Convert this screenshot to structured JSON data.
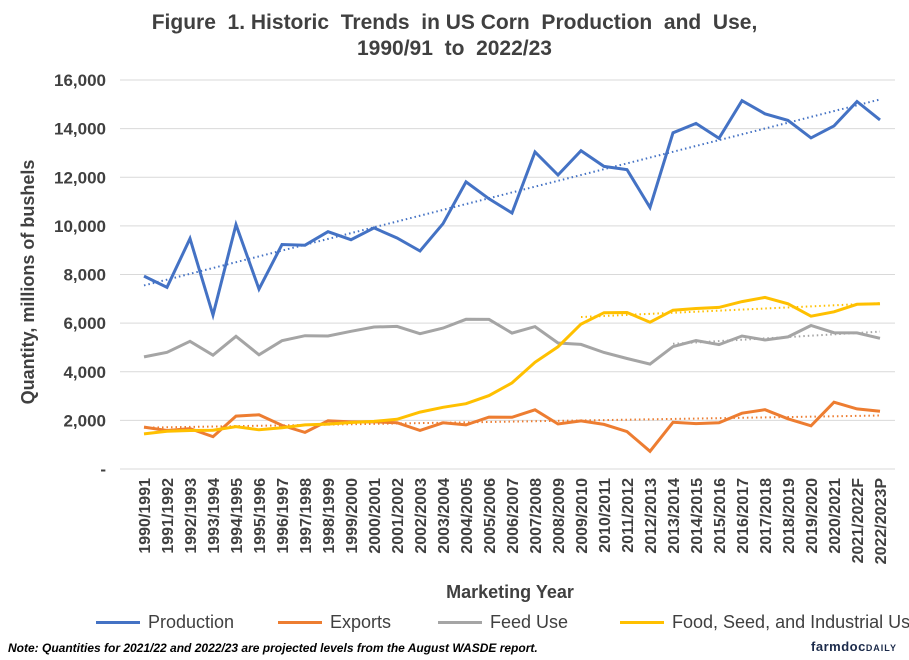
{
  "title_line1": "Figure  1. Historic  Trends  in US Corn  Production  and  Use,",
  "title_line2": "1990/91  to  2022/23",
  "note": "Note:  Quantities  for  2021/22  and  2022/23  are  projected  levels  from  the  August  WASDE  report.",
  "brand": {
    "main": "farmdoc",
    "suffix": "DAILY"
  },
  "chart_data": {
    "type": "line",
    "title": "Figure  1. Historic  Trends  in US Corn  Production  and  Use, 1990/91  to  2022/23",
    "xlabel": "Marketing Year",
    "ylabel": "Quantity, millions of bushels",
    "ylim": [
      0,
      16000
    ],
    "yticks": [
      0,
      2000,
      4000,
      6000,
      8000,
      10000,
      12000,
      14000,
      16000
    ],
    "ytick_labels": [
      "-",
      "2,000",
      "4,000",
      "6,000",
      "8,000",
      "10,000",
      "12,000",
      "14,000",
      "16,000"
    ],
    "grid": true,
    "legend_position": "bottom",
    "categories": [
      "1990/1991",
      "1991/1992",
      "1992/1993",
      "1993/1994",
      "1994/1995",
      "1995/1996",
      "1996/1997",
      "1997/1998",
      "1998/1999",
      "1999/2000",
      "2000/2001",
      "2001/2002",
      "2002/2003",
      "2003/2004",
      "2004/2005",
      "2005/2006",
      "2006/2007",
      "2007/2008",
      "2008/2009",
      "2009/2010",
      "2010/2011",
      "2011/2012",
      "2012/2013",
      "2013/2014",
      "2014/2015",
      "2015/2016",
      "2016/2017",
      "2017/2018",
      "2018/2019",
      "2019/2020",
      "2020/2021",
      "2021/2022F",
      "2022/2023P"
    ],
    "series": [
      {
        "name": "Production",
        "color": "#4472c4",
        "values": [
          7934,
          7475,
          9477,
          6336,
          10051,
          7400,
          9233,
          9207,
          9759,
          9431,
          9915,
          9503,
          8967,
          10089,
          11807,
          11114,
          10531,
          13038,
          12092,
          13092,
          12447,
          12314,
          10755,
          13829,
          14216,
          13602,
          15148,
          14609,
          14340,
          13620,
          14111,
          15115,
          14359
        ],
        "trend": {
          "from": 0,
          "to": 32,
          "start": 7550,
          "end": 15200
        }
      },
      {
        "name": "Exports",
        "color": "#ed7d31",
        "values": [
          1725,
          1584,
          1663,
          1328,
          2177,
          2228,
          1795,
          1504,
          1984,
          1937,
          1941,
          1905,
          1588,
          1900,
          1814,
          2134,
          2125,
          2437,
          1849,
          1980,
          1834,
          1539,
          730,
          1920,
          1867,
          1899,
          2294,
          2438,
          2066,
          1777,
          2747,
          2471,
          2375
        ],
        "trend": {
          "from": 0,
          "to": 32,
          "start": 1700,
          "end": 2200
        }
      },
      {
        "name": "Feed Use",
        "color": "#a5a5a5",
        "values": [
          4609,
          4798,
          5252,
          4680,
          5460,
          4696,
          5277,
          5482,
          5472,
          5664,
          5842,
          5864,
          5563,
          5795,
          6158,
          6155,
          5591,
          5858,
          5182,
          5125,
          4793,
          4545,
          4315,
          5036,
          5287,
          5118,
          5470,
          5304,
          5432,
          5903,
          5607,
          5600,
          5375
        ],
        "trend": {
          "from": 23,
          "to": 32,
          "start": 5150,
          "end": 5650
        }
      },
      {
        "name": "Food, Seed, and Industrial Use",
        "color": "#ffc000",
        "values": [
          1445,
          1556,
          1583,
          1597,
          1740,
          1614,
          1695,
          1815,
          1846,
          1912,
          1957,
          2046,
          2340,
          2537,
          2686,
          3019,
          3541,
          4387,
          5025,
          5961,
          6428,
          6436,
          6038,
          6532,
          6601,
          6648,
          6885,
          7057,
          6793,
          6286,
          6467,
          6775,
          6800
        ],
        "trend": {
          "from": 19,
          "to": 32,
          "start": 6250,
          "end": 6820
        }
      }
    ]
  }
}
